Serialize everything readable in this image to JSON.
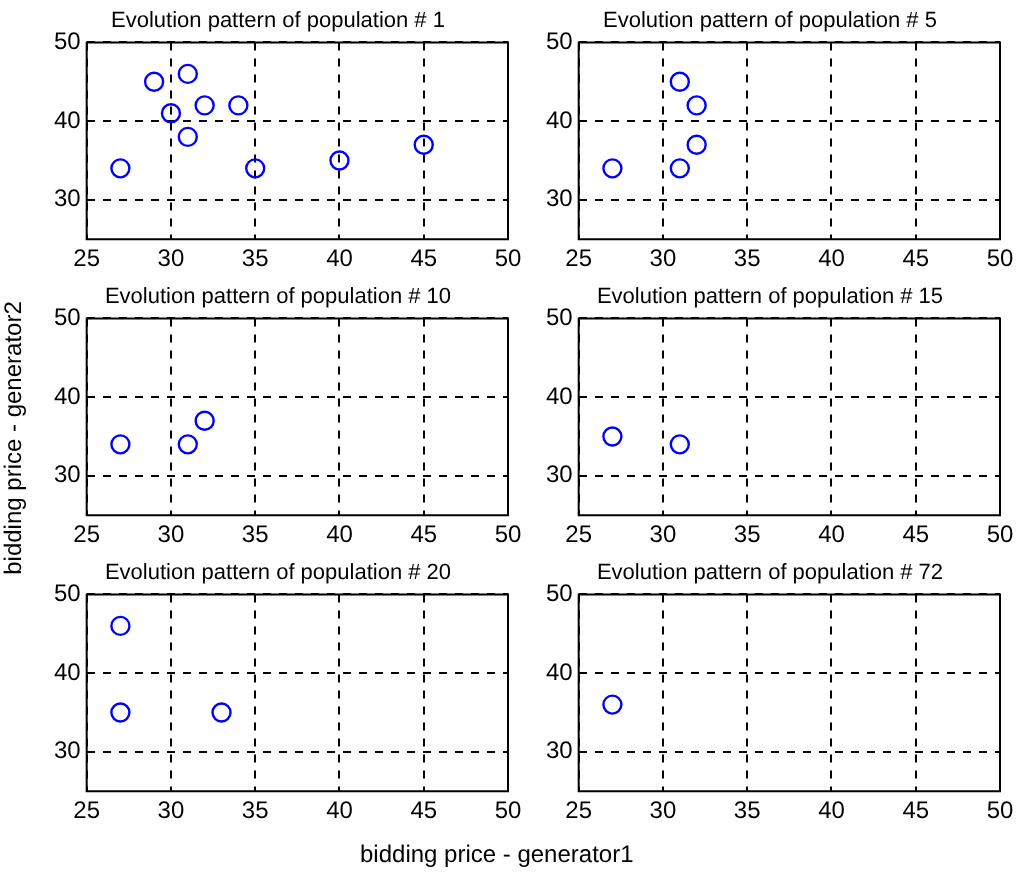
{
  "chart_data": [
    {
      "type": "scatter",
      "title": "Evolution pattern of population # 1",
      "ylabel": "bidding price - generator2",
      "x": [
        27,
        29,
        30,
        31,
        31,
        32,
        34,
        35,
        40,
        45
      ],
      "values": [
        34,
        45,
        41,
        46,
        38,
        42,
        42,
        34,
        35,
        37
      ],
      "color": "#0000ff",
      "marker": "circle",
      "grid": true,
      "xlim": [
        25,
        50
      ],
      "ylim": [
        25,
        50
      ],
      "xticks": [
        25,
        30,
        35,
        40,
        45,
        50
      ],
      "yticks": [
        30,
        40,
        50
      ]
    },
    {
      "type": "scatter",
      "title": "Evolution pattern of population # 5",
      "x": [
        27,
        31,
        32,
        32,
        31
      ],
      "values": [
        34,
        45,
        42,
        37,
        34
      ],
      "color": "#0000ff",
      "marker": "circle",
      "grid": true,
      "xlim": [
        25,
        50
      ],
      "ylim": [
        25,
        50
      ],
      "xticks": [
        25,
        30,
        35,
        40,
        45,
        50
      ],
      "yticks": [
        30,
        40,
        50
      ]
    },
    {
      "type": "scatter",
      "title": "Evolution pattern of population # 10",
      "x": [
        27,
        31,
        32
      ],
      "values": [
        34,
        34,
        37
      ],
      "color": "#0000ff",
      "marker": "circle",
      "grid": true,
      "xlim": [
        25,
        50
      ],
      "ylim": [
        25,
        50
      ],
      "xticks": [
        25,
        30,
        35,
        40,
        45,
        50
      ],
      "yticks": [
        30,
        40,
        50
      ]
    },
    {
      "type": "scatter",
      "title": "Evolution pattern of population # 15",
      "x": [
        27,
        31
      ],
      "values": [
        35,
        34
      ],
      "color": "#0000ff",
      "marker": "circle",
      "grid": true,
      "xlim": [
        25,
        50
      ],
      "ylim": [
        25,
        50
      ],
      "xticks": [
        25,
        30,
        35,
        40,
        45,
        50
      ],
      "yticks": [
        30,
        40,
        50
      ]
    },
    {
      "type": "scatter",
      "title": "Evolution pattern of population # 20",
      "xlabel": "bidding price - generator1",
      "x": [
        27,
        27,
        33
      ],
      "values": [
        46,
        35,
        35
      ],
      "color": "#0000ff",
      "marker": "circle",
      "grid": true,
      "xlim": [
        25,
        50
      ],
      "ylim": [
        25,
        50
      ],
      "xticks": [
        25,
        30,
        35,
        40,
        45,
        50
      ],
      "yticks": [
        30,
        40,
        50
      ]
    },
    {
      "type": "scatter",
      "title": "Evolution pattern of population # 72",
      "x": [
        27
      ],
      "values": [
        36
      ],
      "color": "#0000ff",
      "marker": "circle",
      "grid": true,
      "xlim": [
        25,
        50
      ],
      "ylim": [
        25,
        50
      ],
      "xticks": [
        25,
        30,
        35,
        40,
        45,
        50
      ],
      "yticks": [
        30,
        40,
        50
      ]
    }
  ]
}
